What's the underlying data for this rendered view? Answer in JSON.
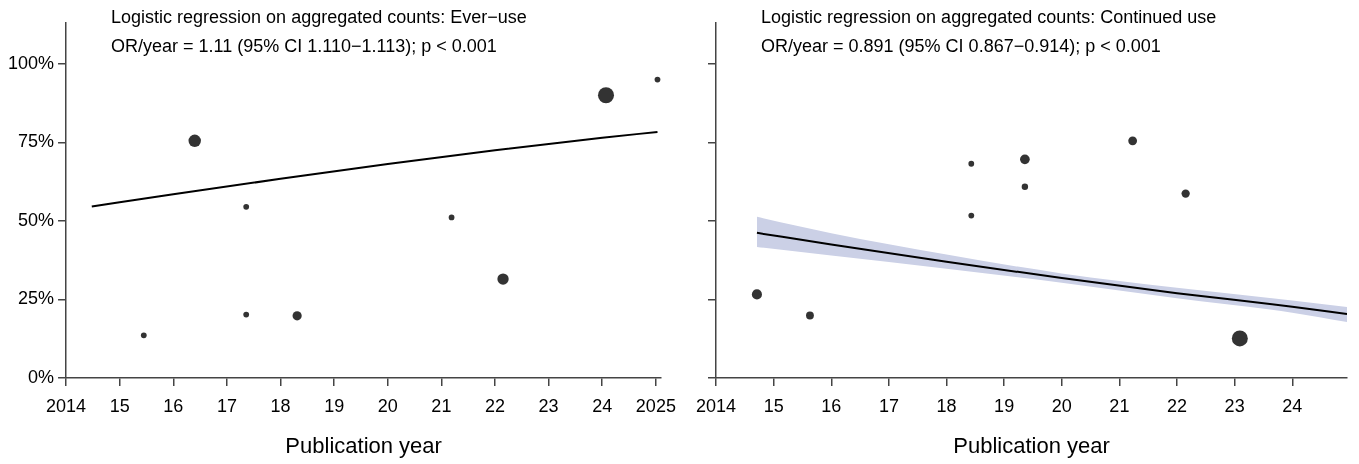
{
  "chart_data": [
    {
      "type": "bubble",
      "title": "Logistic regression on aggregated counts: Ever−use",
      "subtitle": "OR/year = 1.11 (95% CI 1.110−1.113); p < 0.001",
      "xlabel": "Publication year",
      "xlim": [
        2014,
        2025.1
      ],
      "xticks": [
        {
          "value": 2014,
          "label": "2014"
        },
        {
          "value": 2015,
          "label": "15"
        },
        {
          "value": 2016,
          "label": "16"
        },
        {
          "value": 2017,
          "label": "17"
        },
        {
          "value": 2018,
          "label": "18"
        },
        {
          "value": 2019,
          "label": "19"
        },
        {
          "value": 2020,
          "label": "20"
        },
        {
          "value": 2021,
          "label": "21"
        },
        {
          "value": 2022,
          "label": "22"
        },
        {
          "value": 2023,
          "label": "23"
        },
        {
          "value": 2024,
          "label": "24"
        },
        {
          "value": 2025,
          "label": "2025"
        }
      ],
      "ylim": [
        0,
        113
      ],
      "yticks": [
        {
          "value": 0,
          "label": "0%"
        },
        {
          "value": 25,
          "label": "25%"
        },
        {
          "value": 50,
          "label": "50%"
        },
        {
          "value": 75,
          "label": "75%"
        },
        {
          "value": 100,
          "label": "100%"
        }
      ],
      "grid": false,
      "legend": false,
      "series": [
        {
          "color": "#333333",
          "x": [
            2015.45,
            2016.4,
            2017.36,
            2017.36,
            2018.31,
            2021.19,
            2022.15,
            2024.07,
            2025.03
          ],
          "values": [
            13.6,
            75.5,
            54.5,
            20.2,
            19.8,
            51.1,
            31.5,
            90,
            95
          ],
          "sizes": [
            0.13,
            0.6,
            0.13,
            0.13,
            0.33,
            0.13,
            0.5,
            1,
            0.13
          ]
        },
        {
          "type": "line",
          "color": "#000000",
          "x": [
            2014.48,
            2016,
            2018,
            2020,
            2022,
            2024,
            2025.03
          ],
          "values": [
            54.6,
            58.5,
            63.4,
            68.1,
            72.5,
            76.5,
            78.3
          ]
        }
      ]
    },
    {
      "type": "bubble",
      "title": "Logistic regression on aggregated counts: Continued use",
      "subtitle": "OR/year = 0.891 (95% CI 0.867−0.914); p < 0.001",
      "xlabel": "Publication year",
      "xlim": [
        2014,
        2024.95
      ],
      "xticks": [
        {
          "value": 2014,
          "label": "2014"
        },
        {
          "value": 2015,
          "label": "15"
        },
        {
          "value": 2016,
          "label": "16"
        },
        {
          "value": 2017,
          "label": "17"
        },
        {
          "value": 2018,
          "label": "18"
        },
        {
          "value": 2019,
          "label": "19"
        },
        {
          "value": 2020,
          "label": "20"
        },
        {
          "value": 2021,
          "label": "21"
        },
        {
          "value": 2022,
          "label": "22"
        },
        {
          "value": 2023,
          "label": "23"
        },
        {
          "value": 2024,
          "label": "24"
        }
      ],
      "ylim": [
        0,
        113
      ],
      "yticks": [
        {
          "value": 0,
          "label": null
        },
        {
          "value": 25,
          "label": null
        },
        {
          "value": 50,
          "label": null
        },
        {
          "value": 75,
          "label": null
        },
        {
          "value": 100,
          "label": null
        }
      ],
      "tick_labels": "x",
      "grid": false,
      "legend": false,
      "series": [
        {
          "color": "#333333",
          "x": [
            2014.71,
            2015.63,
            2018.43,
            2018.43,
            2019.36,
            2019.36,
            2021.23,
            2022.15,
            2023.09
          ],
          "values": [
            26.6,
            19.9,
            68.2,
            51.7,
            69.6,
            60.9,
            75.5,
            58.7,
            12.6
          ],
          "sizes": [
            0.4,
            0.24,
            0.13,
            0.13,
            0.37,
            0.16,
            0.3,
            0.27,
            1
          ]
        },
        {
          "type": "line",
          "color": "#000000",
          "x": [
            2014.71,
            2016,
            2018,
            2020,
            2022,
            2024,
            2024.95
          ],
          "values": [
            46.2,
            42.5,
            37,
            31.8,
            27,
            22.7,
            20.4
          ],
          "lower": [
            41.7,
            39,
            34.8,
            30.3,
            25.4,
            20.8,
            17.8
          ],
          "upper": [
            51.3,
            46.1,
            39.3,
            33.3,
            28.7,
            24.7,
            22.6
          ]
        }
      ]
    }
  ]
}
